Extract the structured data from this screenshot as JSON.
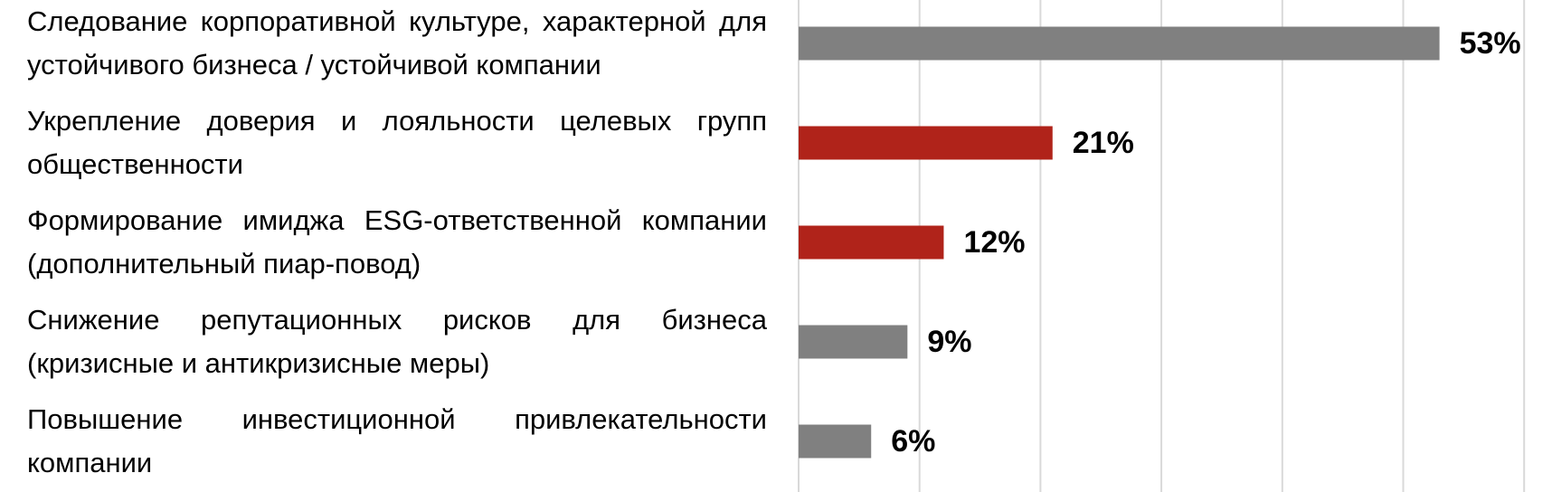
{
  "chart_data": {
    "type": "bar",
    "orientation": "horizontal",
    "categories": [
      "Следование корпоративной культуре, характерной для устойчивого бизнеса / устойчивой компании",
      "Укрепление доверия и лояльности целевых групп общественности",
      "Формирование имиджа ESG-ответственной компании (дополнительный пиар-повод)",
      "Снижение репутационных рисков для бизнеса (кризисные и антикризисные меры)",
      "Повышение инвестиционной привлекательности компании"
    ],
    "values": [
      53,
      21,
      12,
      9,
      6
    ],
    "value_labels": [
      "53%",
      "21%",
      "12%",
      "9%",
      "6%"
    ],
    "colors": [
      "#808080",
      "#b0231a",
      "#b0231a",
      "#808080",
      "#808080"
    ],
    "xlim": [
      0,
      60
    ],
    "xticks": [
      0,
      10,
      20,
      30,
      40,
      50,
      60
    ],
    "grid": true
  }
}
